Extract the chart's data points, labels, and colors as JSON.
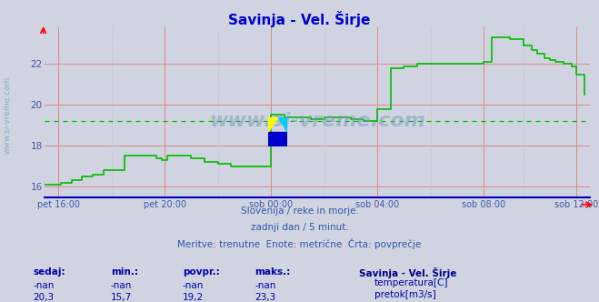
{
  "title": "Savinja - Vel. Širje",
  "title_color": "#0000cc",
  "bg_color": "#d0d4e0",
  "grid_red": "#dd8888",
  "grid_minor": "#c0c4d0",
  "label_color": "#4455aa",
  "subtitle_color": "#3355aa",
  "table_color": "#0000aa",
  "legend_title_color": "#000088",
  "watermark_text": "www.si-vreme.com",
  "watermark_color": "#7799bb",
  "left_label": "www.si-vreme.com",
  "subtitle_lines": [
    "Slovenija / reke in morje.",
    "zadnji dan / 5 minut.",
    "Meritve: trenutne  Enote: metrične  Črta: povprečje"
  ],
  "legend_title": "Savinja - Vel. Širje",
  "table_headers": [
    "sedaj:",
    "min.:",
    "povpr.:",
    "maks.:"
  ],
  "table_row1": [
    "-nan",
    "-nan",
    "-nan",
    "-nan"
  ],
  "table_row2": [
    "20,3",
    "15,7",
    "19,2",
    "23,3"
  ],
  "legend_items": [
    {
      "label": "temperatura[C]",
      "color": "#cc0000"
    },
    {
      "label": "pretok[m3/s]",
      "color": "#00aa00"
    }
  ],
  "ylim": [
    15.45,
    23.8
  ],
  "yticks": [
    16,
    18,
    20,
    22
  ],
  "avg_line_value": 19.2,
  "xlim": [
    0,
    20.5
  ],
  "xtick_labels": [
    "pet 16:00",
    "pet 20:00",
    "sob 00:00",
    "sob 04:00",
    "sob 08:00",
    "sob 12:00"
  ],
  "xtick_positions": [
    0.5,
    4.5,
    8.5,
    12.5,
    16.5,
    20.0
  ],
  "vgrid_positions": [
    0.5,
    4.5,
    8.5,
    12.5,
    16.5,
    20.0
  ],
  "flow_x": [
    0.0,
    0.4,
    0.6,
    1.0,
    1.4,
    1.8,
    2.2,
    3.0,
    3.5,
    4.0,
    4.2,
    4.4,
    4.6,
    5.0,
    5.5,
    6.0,
    6.5,
    7.0,
    7.5,
    8.0,
    8.3,
    8.5,
    9.0,
    9.5,
    10.0,
    10.3,
    10.5,
    11.0,
    11.5,
    12.0,
    12.3,
    12.5,
    12.8,
    13.0,
    13.5,
    14.0,
    16.0,
    16.2,
    16.5,
    16.8,
    17.0,
    17.5,
    18.0,
    18.3,
    18.5,
    18.8,
    19.0,
    19.2,
    19.5,
    19.8,
    20.0,
    20.3
  ],
  "flow_y": [
    16.1,
    16.1,
    16.2,
    16.3,
    16.5,
    16.6,
    16.8,
    17.5,
    17.5,
    17.5,
    17.4,
    17.3,
    17.5,
    17.5,
    17.4,
    17.2,
    17.1,
    17.0,
    17.0,
    17.0,
    17.0,
    19.5,
    19.4,
    19.4,
    19.3,
    19.3,
    19.4,
    19.4,
    19.3,
    19.2,
    19.2,
    19.8,
    19.8,
    21.8,
    21.9,
    22.0,
    22.0,
    22.0,
    22.1,
    23.3,
    23.3,
    23.2,
    22.9,
    22.7,
    22.5,
    22.3,
    22.2,
    22.1,
    22.0,
    21.9,
    21.5,
    20.5
  ],
  "flow_color": "#00bb00",
  "flow_linewidth": 1.2
}
